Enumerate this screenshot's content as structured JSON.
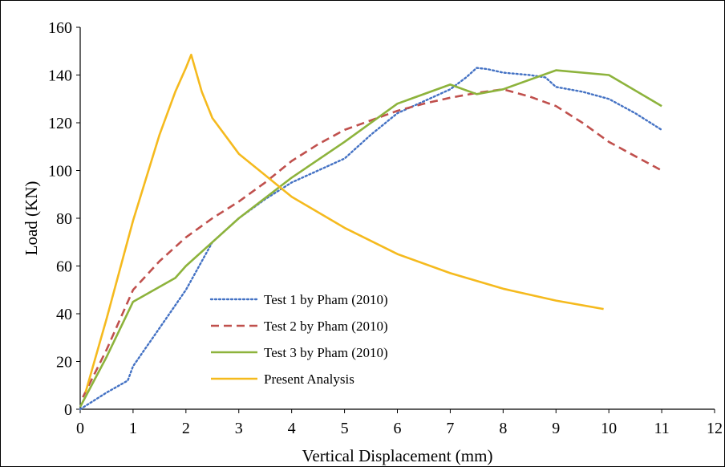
{
  "chart_data": {
    "type": "line",
    "title": "",
    "xlabel": "Vertical Displacement (mm)",
    "ylabel": "Load (KN)",
    "xlim": [
      0,
      12
    ],
    "ylim": [
      0,
      160
    ],
    "x_ticks": [
      0,
      1,
      2,
      3,
      4,
      5,
      6,
      7,
      8,
      9,
      10,
      11,
      12
    ],
    "y_ticks": [
      0,
      20,
      40,
      60,
      80,
      100,
      120,
      140,
      160
    ],
    "grid": false,
    "legend_position": "center-left",
    "series": [
      {
        "name": "Test 1 by Pham (2010)",
        "color": "#4472C4",
        "style": "dotted",
        "x": [
          0,
          0.5,
          0.9,
          1.0,
          1.5,
          2.0,
          2.5,
          3.0,
          3.5,
          4.0,
          4.5,
          5.0,
          5.5,
          6.0,
          6.5,
          7.0,
          7.3,
          7.5,
          7.7,
          8.0,
          8.5,
          8.8,
          9.0,
          9.5,
          10.0,
          10.5,
          11.0
        ],
        "y": [
          0,
          7,
          12,
          18,
          34,
          50,
          70,
          80,
          88,
          95,
          100,
          105,
          115,
          124,
          129,
          134,
          139,
          143,
          142.5,
          141,
          140,
          139,
          135,
          133,
          130,
          124,
          117
        ]
      },
      {
        "name": "Test 2 by Pham (2010)",
        "color": "#C0504D",
        "style": "dashed",
        "x": [
          0.05,
          0.5,
          1.0,
          1.5,
          2.0,
          2.5,
          3.0,
          3.5,
          4.0,
          4.5,
          5.0,
          5.5,
          6.0,
          6.5,
          7.0,
          7.5,
          8.0,
          8.5,
          9.0,
          9.5,
          10.0,
          10.5,
          11.0
        ],
        "y": [
          5,
          25,
          50,
          62,
          72,
          80,
          87,
          95,
          104,
          111,
          117,
          121,
          125,
          128,
          130.5,
          132.5,
          134,
          131,
          127,
          120,
          112,
          106,
          100
        ]
      },
      {
        "name": "Test 3 by Pham (2010)",
        "color": "#8DB33C",
        "style": "solid",
        "x": [
          0,
          0.5,
          1.0,
          1.8,
          2.0,
          2.5,
          3.0,
          4.0,
          5.0,
          6.0,
          7.0,
          7.5,
          8.0,
          9.0,
          10.0,
          11.0
        ],
        "y": [
          1,
          22,
          45,
          55,
          60,
          70,
          80,
          97,
          112,
          128,
          136,
          132,
          134,
          142,
          140,
          127
        ]
      },
      {
        "name": "Present Analysis",
        "color": "#F5BA1E",
        "style": "solid",
        "x": [
          0.1,
          0.5,
          1.0,
          1.5,
          1.8,
          2.0,
          2.1,
          2.3,
          2.5,
          2.8,
          3.0,
          3.5,
          4.0,
          5.0,
          6.0,
          7.0,
          8.0,
          9.0,
          9.9
        ],
        "y": [
          7,
          38,
          79,
          115,
          133,
          143,
          148.5,
          133,
          122,
          113,
          107,
          98,
          89,
          76,
          65,
          57,
          50.5,
          45.5,
          42
        ]
      }
    ]
  }
}
